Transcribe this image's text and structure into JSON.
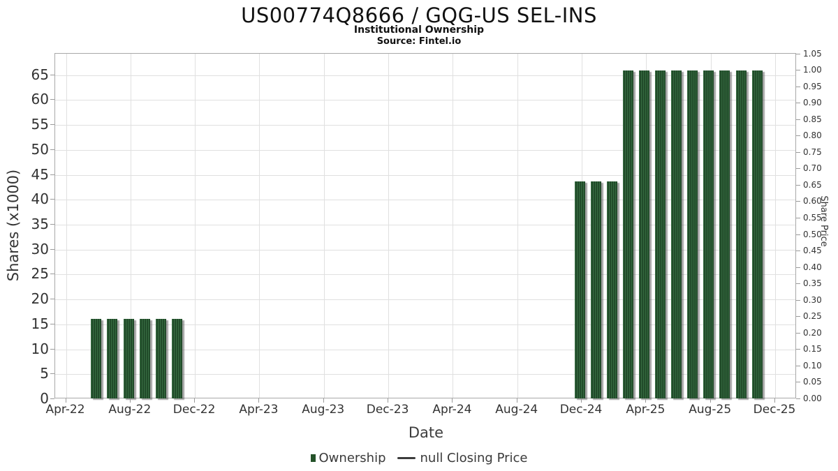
{
  "header": {
    "title": "US00774Q8666 / GQG-US SEL-INS",
    "subtitle": "Institutional Ownership",
    "source": "Source: Fintel.io"
  },
  "legend": {
    "ownership": "Ownership",
    "price": "null Closing Price"
  },
  "colors": {
    "bar": "#27522f",
    "bar-stripe-light": "#356b40",
    "bar-stripe-dark": "#1d4526",
    "grid": "#e0e0e0",
    "axis-border": "#a8a8a8",
    "tick": "#9a9a9a",
    "text": "#333333",
    "title-text": "#111111",
    "legend-marker": "#245229",
    "legend-line": "#3c3c3c"
  },
  "chart_data": {
    "type": "bar",
    "title": "US00774Q8666 / GQG-US SEL-INS",
    "subtitle": "Institutional Ownership",
    "source": "Source: Fintel.io",
    "xlabel": "Date",
    "ylabel": "Shares (x1000)",
    "y2label": "Share Price",
    "grid": true,
    "legend_position": "bottom-center",
    "x_axis": {
      "tick_labels": [
        "Apr-22",
        "Aug-22",
        "Dec-22",
        "Apr-23",
        "Aug-23",
        "Dec-23",
        "Apr-24",
        "Aug-24",
        "Dec-24",
        "Apr-25",
        "Aug-25",
        "Dec-25"
      ],
      "tick_month_indices": [
        0,
        4,
        8,
        12,
        16,
        20,
        24,
        28,
        32,
        36,
        40,
        44
      ]
    },
    "y_axis": {
      "label": "Shares (x1000)",
      "min": 0,
      "max": 69.3,
      "ticks": [
        0,
        5,
        10,
        15,
        20,
        25,
        30,
        35,
        40,
        45,
        50,
        55,
        60,
        65
      ]
    },
    "y2_axis": {
      "label": "Share Price",
      "min": 0,
      "max": 1.0512,
      "ticks": [
        0,
        0.05,
        0.1,
        0.15,
        0.2,
        0.25,
        0.3,
        0.35,
        0.4,
        0.45,
        0.5,
        0.55,
        0.6,
        0.65,
        0.7,
        0.75,
        0.8,
        0.85,
        0.9,
        0.95,
        1.0,
        1.05
      ]
    },
    "series": [
      {
        "name": "Ownership",
        "type": "bar",
        "points": [
          {
            "month": "Jun-22",
            "month_index": 2,
            "shares_x1000": 16.1
          },
          {
            "month": "Jul-22",
            "month_index": 3,
            "shares_x1000": 16.1
          },
          {
            "month": "Aug-22",
            "month_index": 4,
            "shares_x1000": 16.1
          },
          {
            "month": "Sep-22",
            "month_index": 5,
            "shares_x1000": 16.1
          },
          {
            "month": "Oct-22",
            "month_index": 6,
            "shares_x1000": 16.1
          },
          {
            "month": "Nov-22",
            "month_index": 7,
            "shares_x1000": 16.1
          },
          {
            "month": "Dec-24",
            "month_index": 32,
            "shares_x1000": 43.7
          },
          {
            "month": "Jan-25",
            "month_index": 33,
            "shares_x1000": 43.7
          },
          {
            "month": "Feb-25",
            "month_index": 34,
            "shares_x1000": 43.7
          },
          {
            "month": "Mar-25",
            "month_index": 35,
            "shares_x1000": 65.9
          },
          {
            "month": "Apr-25",
            "month_index": 36,
            "shares_x1000": 65.9
          },
          {
            "month": "May-25",
            "month_index": 37,
            "shares_x1000": 65.9
          },
          {
            "month": "Jun-25",
            "month_index": 38,
            "shares_x1000": 65.9
          },
          {
            "month": "Jul-25",
            "month_index": 39,
            "shares_x1000": 65.9
          },
          {
            "month": "Aug-25",
            "month_index": 40,
            "shares_x1000": 65.9
          },
          {
            "month": "Sep-25",
            "month_index": 41,
            "shares_x1000": 65.9
          },
          {
            "month": "Oct-25",
            "month_index": 42,
            "shares_x1000": 65.9
          },
          {
            "month": "Nov-25",
            "month_index": 43,
            "shares_x1000": 65.9
          }
        ]
      },
      {
        "name": "null Closing Price",
        "type": "line",
        "points": []
      }
    ]
  }
}
